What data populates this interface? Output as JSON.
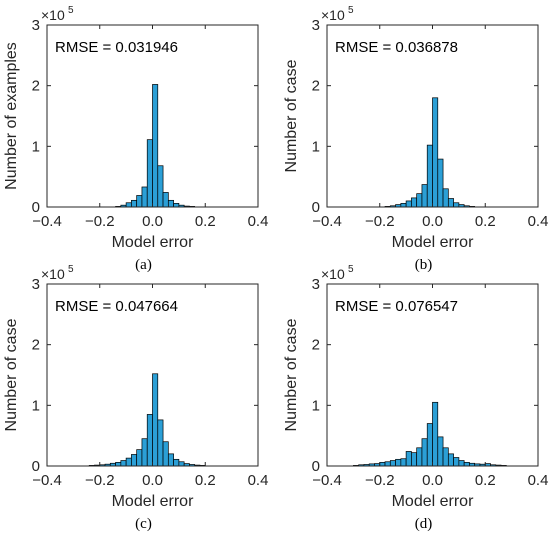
{
  "chart_data": [
    {
      "type": "bar",
      "panel": "(a)",
      "annotation": "RMSE = 0.031946",
      "xlabel": "Model error",
      "ylabel": "Number of examples",
      "y_exponent_label": "×10",
      "y_exponent_power": "5",
      "xlim": [
        -0.4,
        0.4
      ],
      "ylim": [
        0,
        3
      ],
      "xticks": [
        "−0.4",
        "−0.2",
        "0.0",
        "0.2",
        "0.4"
      ],
      "yticks": [
        "0",
        "1",
        "2",
        "3"
      ],
      "bin_width": 0.02,
      "x": [
        -0.13,
        -0.11,
        -0.09,
        -0.07,
        -0.05,
        -0.03,
        -0.01,
        0.01,
        0.03,
        0.05,
        0.07,
        0.09,
        0.11,
        0.13,
        0.15
      ],
      "values": [
        0.01,
        0.03,
        0.07,
        0.11,
        0.19,
        0.33,
        1.11,
        2.02,
        0.68,
        0.24,
        0.11,
        0.06,
        0.03,
        0.015,
        0.01
      ]
    },
    {
      "type": "bar",
      "panel": "(b)",
      "annotation": "RMSE = 0.036878",
      "xlabel": "Model error",
      "ylabel": "Number of case",
      "y_exponent_label": "×10",
      "y_exponent_power": "5",
      "xlim": [
        -0.4,
        0.4
      ],
      "ylim": [
        0,
        3
      ],
      "xticks": [
        "−0.4",
        "−0.2",
        "0.0",
        "0.2",
        "0.4"
      ],
      "yticks": [
        "0",
        "1",
        "2",
        "3"
      ],
      "bin_width": 0.02,
      "x": [
        -0.17,
        -0.15,
        -0.13,
        -0.11,
        -0.09,
        -0.07,
        -0.05,
        -0.03,
        -0.01,
        0.01,
        0.03,
        0.05,
        0.07,
        0.09,
        0.11,
        0.13,
        0.15
      ],
      "values": [
        0.01,
        0.02,
        0.04,
        0.06,
        0.1,
        0.15,
        0.22,
        0.37,
        1.02,
        1.8,
        0.79,
        0.3,
        0.14,
        0.07,
        0.04,
        0.02,
        0.01
      ]
    },
    {
      "type": "bar",
      "panel": "(c)",
      "annotation": "RMSE = 0.047664",
      "xlabel": "Model error",
      "ylabel": "Number of case",
      "y_exponent_label": "×10",
      "y_exponent_power": "5",
      "xlim": [
        -0.4,
        0.4
      ],
      "ylim": [
        0,
        3
      ],
      "xticks": [
        "−0.4",
        "−0.2",
        "0.0",
        "0.2",
        "0.4"
      ],
      "yticks": [
        "0",
        "1",
        "2",
        "3"
      ],
      "bin_width": 0.02,
      "x": [
        -0.23,
        -0.21,
        -0.19,
        -0.17,
        -0.15,
        -0.13,
        -0.11,
        -0.09,
        -0.07,
        -0.05,
        -0.03,
        -0.01,
        0.01,
        0.03,
        0.05,
        0.07,
        0.09,
        0.11,
        0.13,
        0.15,
        0.17,
        0.19
      ],
      "values": [
        0.01,
        0.015,
        0.02,
        0.03,
        0.045,
        0.06,
        0.09,
        0.13,
        0.19,
        0.27,
        0.45,
        0.85,
        1.52,
        0.76,
        0.4,
        0.2,
        0.11,
        0.07,
        0.04,
        0.025,
        0.015,
        0.01
      ]
    },
    {
      "type": "bar",
      "panel": "(d)",
      "annotation": "RMSE = 0.076547",
      "xlabel": "Model error",
      "ylabel": "Number of case",
      "y_exponent_label": "×10",
      "y_exponent_power": "5",
      "xlim": [
        -0.4,
        0.4
      ],
      "ylim": [
        0,
        3
      ],
      "xticks": [
        "−0.4",
        "−0.2",
        "0.0",
        "0.2",
        "0.4"
      ],
      "yticks": [
        "0",
        "1",
        "2",
        "3"
      ],
      "bin_width": 0.02,
      "x": [
        -0.29,
        -0.27,
        -0.25,
        -0.23,
        -0.21,
        -0.19,
        -0.17,
        -0.15,
        -0.13,
        -0.11,
        -0.09,
        -0.07,
        -0.05,
        -0.03,
        -0.01,
        0.01,
        0.03,
        0.05,
        0.07,
        0.09,
        0.11,
        0.13,
        0.15,
        0.17,
        0.19,
        0.21,
        0.23,
        0.25,
        0.27
      ],
      "values": [
        0.01,
        0.02,
        0.025,
        0.035,
        0.04,
        0.06,
        0.07,
        0.09,
        0.11,
        0.12,
        0.24,
        0.22,
        0.3,
        0.45,
        0.7,
        1.05,
        0.48,
        0.3,
        0.2,
        0.14,
        0.09,
        0.06,
        0.045,
        0.035,
        0.03,
        0.04,
        0.02,
        0.015,
        0.01
      ]
    }
  ]
}
